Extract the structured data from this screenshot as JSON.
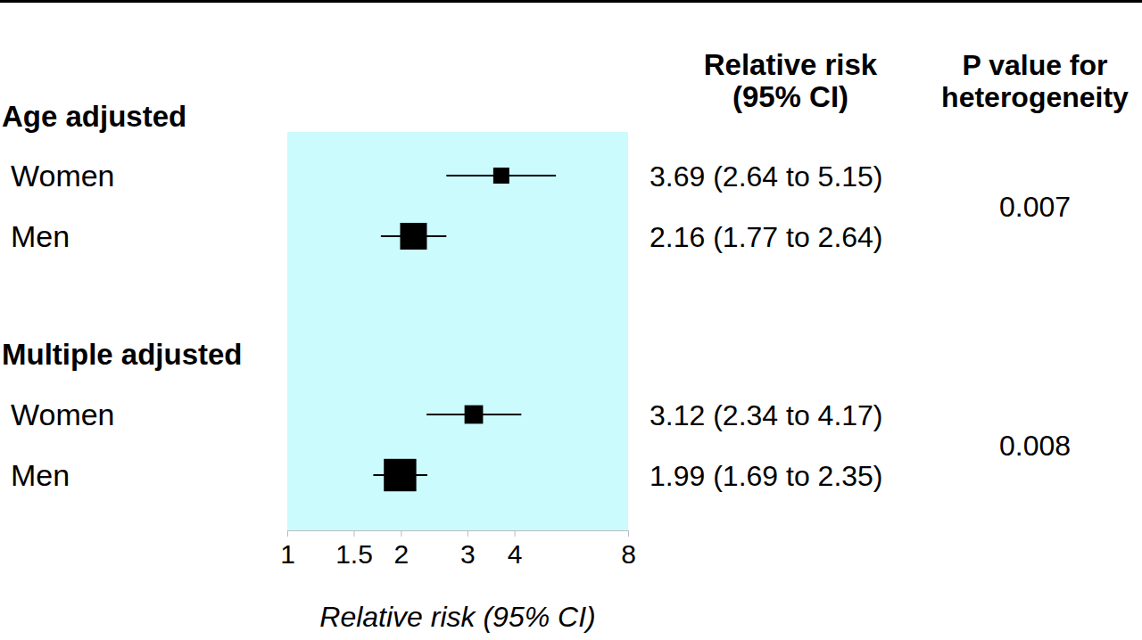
{
  "chart_data": {
    "type": "forest",
    "log": "x",
    "xlabel": "Relative risk (95% CI)",
    "xlim": [
      1,
      8
    ],
    "xticks": [
      1,
      1.5,
      2,
      3,
      4,
      8
    ],
    "estimate_header": [
      "Relative risk",
      "(95% CI)"
    ],
    "p_header": [
      "P value for",
      "heterogeneity"
    ],
    "groups": [
      {
        "label": "Age adjusted",
        "categories": [
          "Women",
          "Men"
        ],
        "values": [
          3.69,
          2.16
        ],
        "lower": [
          2.64,
          1.77
        ],
        "upper": [
          5.15,
          2.64
        ],
        "value_labels": [
          "3.69 (2.64 to 5.15)",
          "2.16 (1.77 to 2.64)"
        ],
        "p_value": 0.007
      },
      {
        "label": "Multiple adjusted",
        "categories": [
          "Women",
          "Men"
        ],
        "values": [
          3.12,
          1.99
        ],
        "lower": [
          2.34,
          1.69
        ],
        "upper": [
          4.17,
          2.35
        ],
        "value_labels": [
          "3.12 (2.34 to 4.17)",
          "1.99 (1.69 to 2.35)"
        ],
        "p_value": 0.008
      }
    ],
    "color": "#000000"
  }
}
